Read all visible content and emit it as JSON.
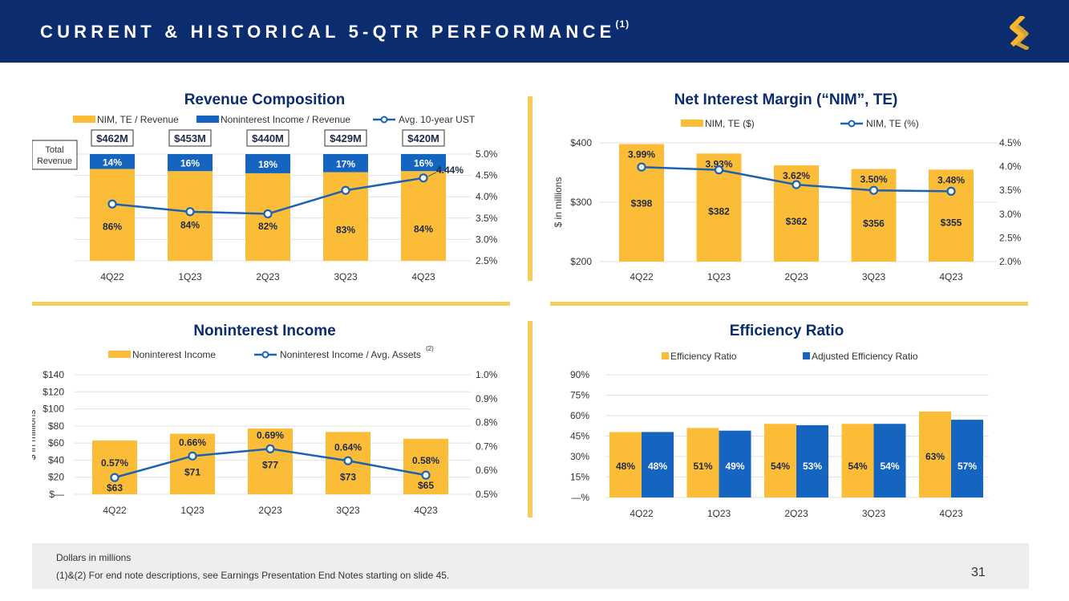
{
  "header": {
    "title": "CURRENT & HISTORICAL 5-QTR PERFORMANCE",
    "footnote_ref": "(1)"
  },
  "colors": {
    "navy": "#0b2c6e",
    "gold": "#fbbd37",
    "blue": "#1565c0",
    "line": "#1c62b2"
  },
  "chart_data": [
    {
      "id": "revenue",
      "type": "bar",
      "title": "Revenue Composition",
      "categories": [
        "4Q22",
        "1Q23",
        "2Q23",
        "3Q23",
        "4Q23"
      ],
      "series": [
        {
          "name": "NIM, TE / Revenue",
          "values": [
            86,
            84,
            82,
            83,
            84
          ],
          "labels": [
            "86%",
            "84%",
            "82%",
            "83%",
            "84%"
          ]
        },
        {
          "name": "Noninterest Income / Revenue",
          "values": [
            14,
            16,
            18,
            17,
            16
          ],
          "labels": [
            "14%",
            "16%",
            "18%",
            "17%",
            "16%"
          ]
        },
        {
          "name": "Avg. 10-year UST",
          "axis": "right",
          "values": [
            3.83,
            3.65,
            3.6,
            4.15,
            4.44
          ],
          "labels": [
            "",
            "",
            "",
            "",
            "4.44%"
          ]
        }
      ],
      "totals": [
        462,
        453,
        440,
        429,
        420
      ],
      "total_labels": [
        "$462M",
        "$453M",
        "$440M",
        "$429M",
        "$420M"
      ],
      "total_box_label": "Total Revenue",
      "y_right": {
        "min": 2.5,
        "max": 5.0,
        "ticks": [
          "2.5%",
          "3.0%",
          "3.5%",
          "4.0%",
          "4.5%",
          "5.0%"
        ]
      }
    },
    {
      "id": "nim",
      "type": "bar",
      "title": "Net Interest Margin (“NIM”, TE)",
      "categories": [
        "4Q22",
        "1Q23",
        "2Q23",
        "3Q23",
        "4Q23"
      ],
      "ylabel": "$ in millions",
      "series": [
        {
          "name": "NIM, TE ($)",
          "values": [
            398,
            382,
            362,
            356,
            355
          ],
          "labels": [
            "$398",
            "$382",
            "$362",
            "$356",
            "$355"
          ]
        },
        {
          "name": "NIM, TE (%)",
          "axis": "right",
          "values": [
            3.99,
            3.93,
            3.62,
            3.5,
            3.48
          ],
          "labels": [
            "3.99%",
            "3.93%",
            "3.62%",
            "3.50%",
            "3.48%"
          ]
        }
      ],
      "y_left": {
        "min": 200,
        "max": 400,
        "ticks": [
          "$200",
          "$300",
          "$400"
        ]
      },
      "y_right": {
        "min": 2.0,
        "max": 4.5,
        "ticks": [
          "2.0%",
          "2.5%",
          "3.0%",
          "3.5%",
          "4.0%",
          "4.5%"
        ]
      }
    },
    {
      "id": "noninterest",
      "type": "bar",
      "title": "Noninterest Income",
      "categories": [
        "4Q22",
        "1Q23",
        "2Q23",
        "3Q23",
        "4Q23"
      ],
      "ylabel": "$ in millions",
      "series": [
        {
          "name": "Noninterest Income",
          "values": [
            63,
            71,
            77,
            73,
            65
          ],
          "labels": [
            "$63",
            "$71",
            "$77",
            "$73",
            "$65"
          ]
        },
        {
          "name": "Noninterest Income / Avg. Assets",
          "footnote": "(2)",
          "axis": "right",
          "values": [
            0.57,
            0.66,
            0.69,
            0.64,
            0.58
          ],
          "labels": [
            "0.57%",
            "0.66%",
            "0.69%",
            "0.64%",
            "0.58%"
          ]
        }
      ],
      "y_left": {
        "min": 0,
        "max": 140,
        "ticks": [
          "$—",
          "$20",
          "$40",
          "$60",
          "$80",
          "$100",
          "$120",
          "$140"
        ]
      },
      "y_right": {
        "min": 0.5,
        "max": 1.0,
        "ticks": [
          "0.5%",
          "0.6%",
          "0.7%",
          "0.8%",
          "0.9%",
          "1.0%"
        ]
      }
    },
    {
      "id": "efficiency",
      "type": "bar",
      "title": "Efficiency Ratio",
      "categories": [
        "4Q22",
        "1Q23",
        "2Q23",
        "3Q23",
        "4Q23"
      ],
      "series": [
        {
          "name": "Efficiency Ratio",
          "values": [
            48,
            51,
            54,
            54,
            63
          ],
          "labels": [
            "48%",
            "51%",
            "54%",
            "54%",
            "63%"
          ]
        },
        {
          "name": "Adjusted Efficiency Ratio",
          "values": [
            48,
            49,
            53,
            54,
            57
          ],
          "labels": [
            "48%",
            "49%",
            "53%",
            "54%",
            "57%"
          ]
        }
      ],
      "y_left": {
        "min": 0,
        "max": 90,
        "ticks": [
          "—%",
          "15%",
          "30%",
          "45%",
          "60%",
          "75%",
          "90%"
        ]
      }
    }
  ],
  "footnote": {
    "line1": "Dollars in millions",
    "line2": "(1)&(2)  For end note descriptions, see Earnings Presentation End Notes starting on slide 45."
  },
  "page_number": "31"
}
